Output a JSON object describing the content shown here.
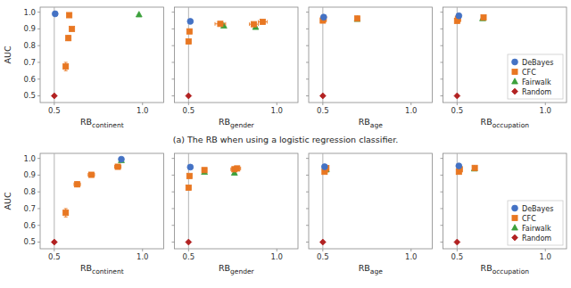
{
  "chart_data": [
    {
      "type": "scatter",
      "x_label": "RBcontinent",
      "y_label": "AUC",
      "xlim": [
        0.42,
        1.12
      ],
      "ylim": [
        0.46,
        1.03
      ],
      "xticks": [
        {
          "value": 0.5,
          "label": "0.5"
        },
        {
          "value": 1.0,
          "label": "1.0"
        }
      ],
      "yticks": [
        {
          "value": 0.5,
          "label": "0.5"
        },
        {
          "value": 0.6,
          "label": "0.6"
        },
        {
          "value": 0.7,
          "label": "0.7"
        },
        {
          "value": 0.8,
          "label": "0.8"
        },
        {
          "value": 0.9,
          "label": "0.9"
        },
        {
          "value": 1.0,
          "label": "1.0"
        }
      ],
      "vline_x": 0.5,
      "annotations": [
        {
          "text": "(a) The RB when using a logistic regression classifier."
        }
      ],
      "series": [
        {
          "name": "DeBayes",
          "color": "#4472C4",
          "marker": "circle",
          "x": [
            0.505
          ],
          "values": [
            0.99
          ],
          "x_errors": [
            0.003
          ],
          "errors": [
            0.004
          ]
        },
        {
          "name": "CFC",
          "color": "#E87722",
          "marker": "square",
          "x": [
            0.565,
            0.58,
            0.6,
            0.585
          ],
          "values": [
            0.675,
            0.845,
            0.9,
            0.982
          ],
          "x_errors": [
            0.012,
            0.01,
            0.01,
            0.005
          ],
          "errors": [
            0.025,
            0.015,
            0.01,
            0.005
          ]
        },
        {
          "name": "Fairwalk",
          "color": "#3BA03B",
          "marker": "triangle",
          "x": [
            0.98
          ],
          "values": [
            0.985
          ],
          "x_errors": [
            0.0
          ],
          "errors": [
            0.0
          ]
        },
        {
          "name": "Random",
          "color": "#B22222",
          "marker": "diamond",
          "x": [
            0.5
          ],
          "values": [
            0.5
          ],
          "x_errors": [
            0.0
          ],
          "errors": [
            0.005
          ]
        }
      ]
    },
    {
      "type": "scatter",
      "x_label": "RBgender",
      "tick_labels": "x",
      "xlim": [
        0.42,
        1.12
      ],
      "ylim": [
        0.46,
        1.03
      ],
      "xticks": [
        {
          "value": 0.5,
          "label": "0.5"
        },
        {
          "value": 1.0,
          "label": "1.0"
        }
      ],
      "yticks": [
        0.5,
        0.6,
        0.7,
        0.8,
        0.9,
        1.0
      ],
      "vline_x": 0.5,
      "series": [
        {
          "name": "DeBayes",
          "color": "#4472C4",
          "marker": "circle",
          "x": [
            0.51
          ],
          "values": [
            0.945
          ],
          "x_errors": [
            0.005
          ],
          "errors": [
            0.005
          ]
        },
        {
          "name": "CFC",
          "color": "#E87722",
          "marker": "square",
          "x": [
            0.5,
            0.505,
            0.68,
            0.87,
            0.92
          ],
          "values": [
            0.825,
            0.885,
            0.93,
            0.928,
            0.942
          ],
          "x_errors": [
            0.005,
            0.005,
            0.03,
            0.025,
            0.025
          ],
          "errors": [
            0.012,
            0.01,
            0.007,
            0.007,
            0.005
          ]
        },
        {
          "name": "Fairwalk",
          "color": "#3BA03B",
          "marker": "triangle",
          "x": [
            0.7,
            0.88
          ],
          "values": [
            0.918,
            0.91
          ],
          "x_errors": [
            0.0,
            0.0
          ],
          "errors": [
            0.0,
            0.0
          ]
        },
        {
          "name": "Random",
          "color": "#B22222",
          "marker": "diamond",
          "x": [
            0.5
          ],
          "values": [
            0.5
          ],
          "x_errors": [
            0.0
          ],
          "errors": [
            0.005
          ]
        }
      ]
    },
    {
      "type": "scatter",
      "x_label": "RBage",
      "tick_labels": "x",
      "xlim": [
        0.42,
        1.12
      ],
      "ylim": [
        0.46,
        1.03
      ],
      "xticks": [
        {
          "value": 0.5,
          "label": "0.5"
        },
        {
          "value": 1.0,
          "label": "1.0"
        }
      ],
      "yticks": [
        0.5,
        0.6,
        0.7,
        0.8,
        0.9,
        1.0
      ],
      "vline_x": 0.5,
      "series": [
        {
          "name": "DeBayes",
          "color": "#4472C4",
          "marker": "circle",
          "x": [
            0.505
          ],
          "values": [
            0.97
          ],
          "x_errors": [
            0.003
          ],
          "errors": [
            0.005
          ]
        },
        {
          "name": "CFC",
          "color": "#E87722",
          "marker": "square",
          "x": [
            0.5,
            0.505,
            0.695
          ],
          "values": [
            0.95,
            0.96,
            0.962
          ],
          "x_errors": [
            0.005,
            0.005,
            0.005
          ],
          "errors": [
            0.008,
            0.006,
            0.005
          ]
        },
        {
          "name": "Fairwalk",
          "color": "#3BA03B",
          "marker": "triangle",
          "x": [
            0.695
          ],
          "values": [
            0.958
          ],
          "x_errors": [
            0.0
          ],
          "errors": [
            0.0
          ]
        },
        {
          "name": "Random",
          "color": "#B22222",
          "marker": "diamond",
          "x": [
            0.5
          ],
          "values": [
            0.5
          ],
          "x_errors": [
            0.0
          ],
          "errors": [
            0.005
          ]
        }
      ]
    },
    {
      "type": "scatter",
      "x_label": "RBoccupation",
      "tick_labels": "x",
      "legend": "lower right",
      "xlim": [
        0.42,
        1.12
      ],
      "ylim": [
        0.46,
        1.03
      ],
      "xticks": [
        {
          "value": 0.5,
          "label": "0.5"
        },
        {
          "value": 1.0,
          "label": "1.0"
        }
      ],
      "yticks": [
        0.5,
        0.6,
        0.7,
        0.8,
        0.9,
        1.0
      ],
      "vline_x": 0.5,
      "series": [
        {
          "name": "DeBayes",
          "color": "#4472C4",
          "marker": "circle",
          "x": [
            0.51
          ],
          "values": [
            0.978
          ],
          "x_errors": [
            0.003
          ],
          "errors": [
            0.005
          ]
        },
        {
          "name": "CFC",
          "color": "#E87722",
          "marker": "square",
          "x": [
            0.5,
            0.505,
            0.65
          ],
          "values": [
            0.948,
            0.96,
            0.968
          ],
          "x_errors": [
            0.005,
            0.005,
            0.005
          ],
          "errors": [
            0.005,
            0.005,
            0.005
          ]
        },
        {
          "name": "Fairwalk",
          "color": "#3BA03B",
          "marker": "triangle",
          "x": [
            0.645
          ],
          "values": [
            0.962
          ],
          "x_errors": [
            0.0
          ],
          "errors": [
            0.0
          ]
        },
        {
          "name": "Random",
          "color": "#B22222",
          "marker": "diamond",
          "x": [
            0.5
          ],
          "values": [
            0.5
          ],
          "x_errors": [
            0.0
          ],
          "errors": [
            0.005
          ]
        }
      ]
    },
    {
      "type": "scatter",
      "x_label": "RBcontinent",
      "y_label": "AUC",
      "xlim": [
        0.42,
        1.12
      ],
      "ylim": [
        0.46,
        1.03
      ],
      "xticks": [
        {
          "value": 0.5,
          "label": "0.5"
        },
        {
          "value": 1.0,
          "label": "1.0"
        }
      ],
      "yticks": [
        {
          "value": 0.5,
          "label": "0.5"
        },
        {
          "value": 0.6,
          "label": "0.6"
        },
        {
          "value": 0.7,
          "label": "0.7"
        },
        {
          "value": 0.8,
          "label": "0.8"
        },
        {
          "value": 0.9,
          "label": "0.9"
        },
        {
          "value": 1.0,
          "label": "1.0"
        }
      ],
      "vline_x": 0.5,
      "series": [
        {
          "name": "DeBayes",
          "color": "#4472C4",
          "marker": "circle",
          "x": [
            0.88
          ],
          "values": [
            0.995
          ],
          "x_errors": [
            0.005
          ],
          "errors": [
            0.003
          ]
        },
        {
          "name": "CFC",
          "color": "#E87722",
          "marker": "square",
          "x": [
            0.565,
            0.63,
            0.71,
            0.86
          ],
          "values": [
            0.675,
            0.845,
            0.902,
            0.95
          ],
          "x_errors": [
            0.012,
            0.018,
            0.018,
            0.018
          ],
          "errors": [
            0.025,
            0.015,
            0.01,
            0.008
          ]
        },
        {
          "name": "Fairwalk",
          "color": "#3BA03B",
          "marker": "triangle",
          "x": [
            0.88
          ],
          "values": [
            0.988
          ],
          "x_errors": [
            0.0
          ],
          "errors": [
            0.0
          ]
        },
        {
          "name": "Random",
          "color": "#B22222",
          "marker": "diamond",
          "x": [
            0.5
          ],
          "values": [
            0.5
          ],
          "x_errors": [
            0.0
          ],
          "errors": [
            0.005
          ]
        }
      ]
    },
    {
      "type": "scatter",
      "x_label": "RBgender",
      "tick_labels": "x",
      "xlim": [
        0.42,
        1.12
      ],
      "ylim": [
        0.46,
        1.03
      ],
      "xticks": [
        {
          "value": 0.5,
          "label": "0.5"
        },
        {
          "value": 1.0,
          "label": "1.0"
        }
      ],
      "yticks": [
        0.5,
        0.6,
        0.7,
        0.8,
        0.9,
        1.0
      ],
      "vline_x": 0.5,
      "series": [
        {
          "name": "DeBayes",
          "color": "#4472C4",
          "marker": "circle",
          "x": [
            0.51
          ],
          "values": [
            0.948
          ],
          "x_errors": [
            0.005
          ],
          "errors": [
            0.005
          ]
        },
        {
          "name": "CFC",
          "color": "#E87722",
          "marker": "square",
          "x": [
            0.5,
            0.505,
            0.59,
            0.76,
            0.775
          ],
          "values": [
            0.825,
            0.895,
            0.93,
            0.935,
            0.94
          ],
          "x_errors": [
            0.005,
            0.005,
            0.012,
            0.02,
            0.02
          ],
          "errors": [
            0.012,
            0.01,
            0.006,
            0.006,
            0.005
          ]
        },
        {
          "name": "Fairwalk",
          "color": "#3BA03B",
          "marker": "triangle",
          "x": [
            0.59,
            0.76
          ],
          "values": [
            0.918,
            0.913
          ],
          "x_errors": [
            0.0,
            0.0
          ],
          "errors": [
            0.0,
            0.0
          ]
        },
        {
          "name": "Random",
          "color": "#B22222",
          "marker": "diamond",
          "x": [
            0.5
          ],
          "values": [
            0.5
          ],
          "x_errors": [
            0.0
          ],
          "errors": [
            0.005
          ]
        }
      ]
    },
    {
      "type": "scatter",
      "x_label": "RBage",
      "tick_labels": "x",
      "xlim": [
        0.42,
        1.12
      ],
      "ylim": [
        0.46,
        1.03
      ],
      "xticks": [
        {
          "value": 0.5,
          "label": "0.5"
        },
        {
          "value": 1.0,
          "label": "1.0"
        }
      ],
      "yticks": [
        0.5,
        0.6,
        0.7,
        0.8,
        0.9,
        1.0
      ],
      "vline_x": 0.5,
      "series": [
        {
          "name": "DeBayes",
          "color": "#4472C4",
          "marker": "circle",
          "x": [
            0.51
          ],
          "values": [
            0.95
          ],
          "x_errors": [
            0.004
          ],
          "errors": [
            0.005
          ]
        },
        {
          "name": "CFC",
          "color": "#E87722",
          "marker": "square",
          "x": [
            0.51,
            0.515,
            0.52
          ],
          "values": [
            0.92,
            0.935,
            0.942
          ],
          "x_errors": [
            0.005,
            0.005,
            0.005
          ],
          "errors": [
            0.008,
            0.005,
            0.005
          ]
        },
        {
          "name": "Fairwalk",
          "color": "#3BA03B",
          "marker": "triangle",
          "x": [
            0.518,
            0.52
          ],
          "values": [
            0.938,
            0.933
          ],
          "x_errors": [
            0.0,
            0.0
          ],
          "errors": [
            0.0,
            0.0
          ]
        },
        {
          "name": "Random",
          "color": "#B22222",
          "marker": "diamond",
          "x": [
            0.5
          ],
          "values": [
            0.5
          ],
          "x_errors": [
            0.0
          ],
          "errors": [
            0.005
          ]
        }
      ]
    },
    {
      "type": "scatter",
      "x_label": "RBoccupation",
      "tick_labels": "x",
      "legend": "lower right",
      "xlim": [
        0.42,
        1.12
      ],
      "ylim": [
        0.46,
        1.03
      ],
      "xticks": [
        {
          "value": 0.5,
          "label": "0.5"
        },
        {
          "value": 1.0,
          "label": "1.0"
        }
      ],
      "yticks": [
        0.5,
        0.6,
        0.7,
        0.8,
        0.9,
        1.0
      ],
      "vline_x": 0.5,
      "series": [
        {
          "name": "DeBayes",
          "color": "#4472C4",
          "marker": "circle",
          "x": [
            0.51
          ],
          "values": [
            0.955
          ],
          "x_errors": [
            0.004
          ],
          "errors": [
            0.005
          ]
        },
        {
          "name": "CFC",
          "color": "#E87722",
          "marker": "square",
          "x": [
            0.51,
            0.515,
            0.6
          ],
          "values": [
            0.92,
            0.935,
            0.943
          ],
          "x_errors": [
            0.005,
            0.005,
            0.005
          ],
          "errors": [
            0.005,
            0.005,
            0.005
          ]
        },
        {
          "name": "Fairwalk",
          "color": "#3BA03B",
          "marker": "triangle",
          "x": [
            0.598
          ],
          "values": [
            0.938
          ],
          "x_errors": [
            0.0
          ],
          "errors": [
            0.0
          ]
        },
        {
          "name": "Random",
          "color": "#B22222",
          "marker": "diamond",
          "x": [
            0.5
          ],
          "values": [
            0.5
          ],
          "x_errors": [
            0.0
          ],
          "errors": [
            0.005
          ]
        }
      ]
    }
  ]
}
